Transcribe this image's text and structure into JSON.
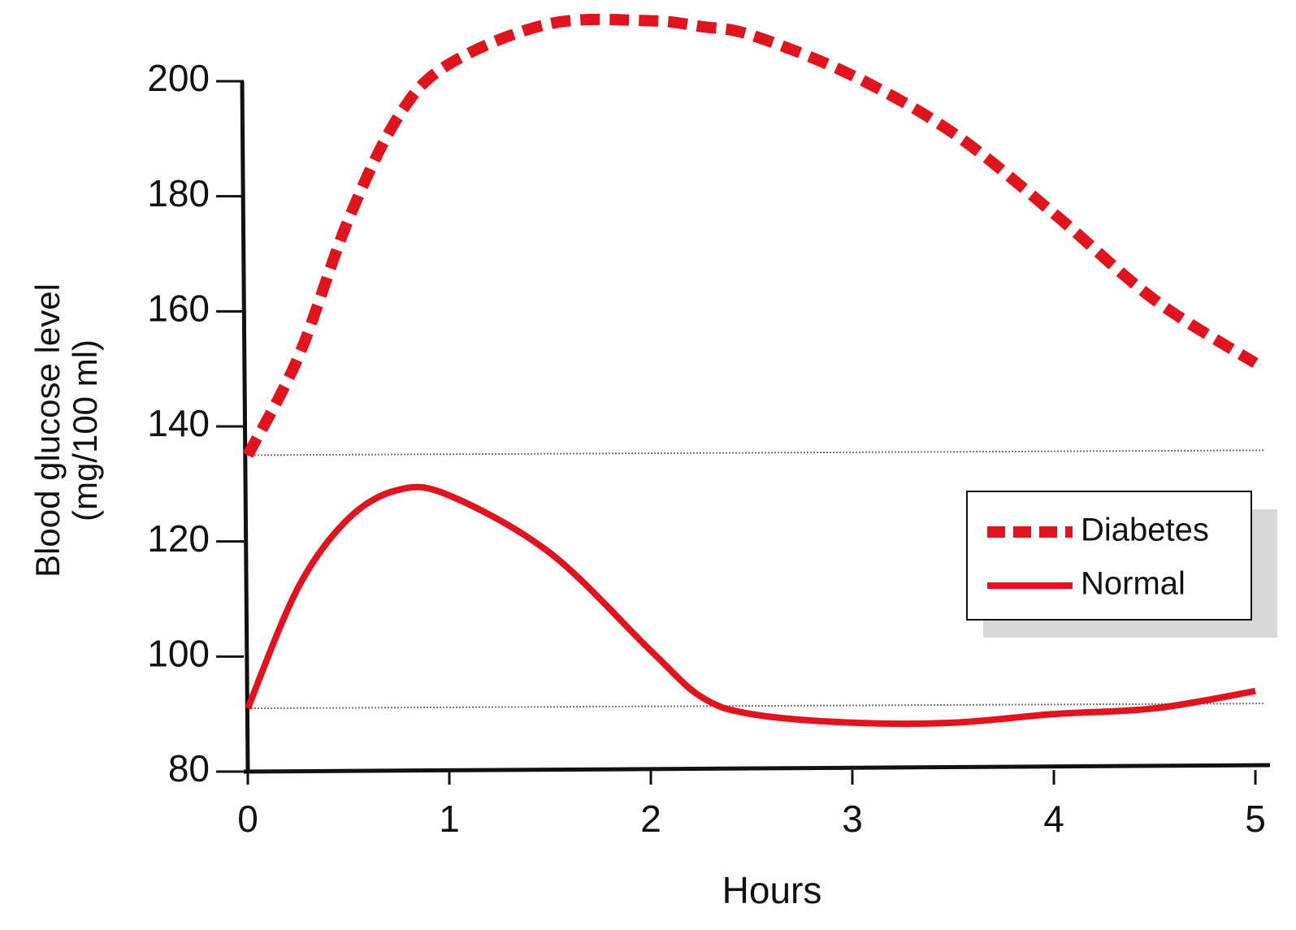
{
  "chart_data": {
    "type": "line",
    "xlabel": "Hours",
    "ylabel": [
      "Blood glucose level",
      "(mg/100 ml)"
    ],
    "x": [
      0,
      0.25,
      0.5,
      0.75,
      1,
      1.5,
      2,
      2.25,
      2.5,
      3,
      3.5,
      4,
      4.5,
      5
    ],
    "series": [
      {
        "name": "Diabetes",
        "color": "#e0141e",
        "dashed": true,
        "values": [
          135,
          152,
          176,
          194,
          203,
          210,
          210.5,
          209.5,
          208,
          201,
          191,
          177,
          162,
          151
        ]
      },
      {
        "name": "Normal",
        "color": "#e0141e",
        "dashed": false,
        "values": [
          91,
          112,
          124,
          129,
          128,
          118,
          101,
          93,
          90,
          88.5,
          88.5,
          90,
          91,
          94
        ]
      }
    ],
    "hlines": [
      135,
      91
    ],
    "xlim": [
      0,
      5
    ],
    "xticks": [
      0,
      1,
      2,
      3,
      4,
      5
    ],
    "ylim": [
      80,
      200
    ],
    "yticks": [
      80,
      100,
      120,
      140,
      160,
      180,
      200
    ],
    "legend": "right"
  }
}
